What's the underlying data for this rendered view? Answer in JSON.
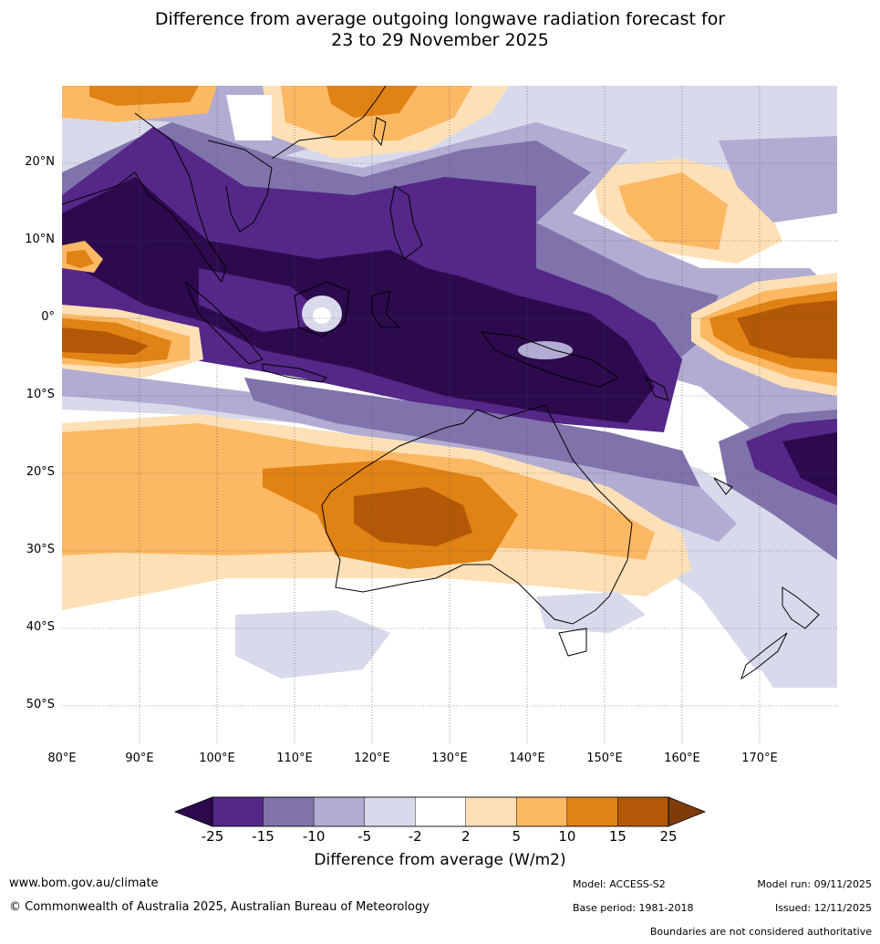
{
  "title_line1": "Difference from average outgoing longwave radiation forecast for",
  "title_line2": "23 to 29 November 2025",
  "axes": {
    "lat_labels": [
      "20°N",
      "10°N",
      "0°",
      "10°S",
      "20°S",
      "30°S",
      "40°S",
      "50°S"
    ],
    "lon_labels": [
      "80°E",
      "90°E",
      "100°E",
      "110°E",
      "120°E",
      "130°E",
      "140°E",
      "150°E",
      "160°E",
      "170°E"
    ]
  },
  "colorbar": {
    "ticks": [
      "-25",
      "-15",
      "-10",
      "-5",
      "-2",
      "2",
      "5",
      "10",
      "15",
      "25"
    ],
    "colors": [
      "#2d0a4e",
      "#542788",
      "#8073ac",
      "#b2abd2",
      "#d8daeb",
      "#ffffff",
      "#fee0b6",
      "#fdb863",
      "#e08214",
      "#b35806",
      "#7f3b08"
    ],
    "title": "Difference from average (W/m2)"
  },
  "footer": {
    "website": "www.bom.gov.au/climate",
    "copyright": "© Commonwealth of Australia 2025, Australian Bureau of Meteorology",
    "model": "Model: ACCESS-S2",
    "base_period": "Base period: 1981-2018",
    "model_run": "Model run: 09/11/2025",
    "issued": "Issued: 12/11/2025",
    "disclaimer": "Boundaries are not considered authoritative"
  }
}
